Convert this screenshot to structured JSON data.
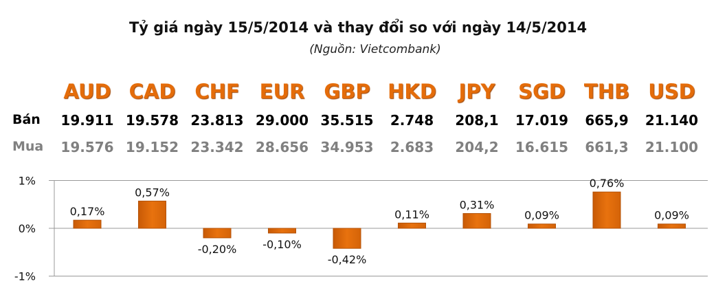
{
  "title": "Tỷ giá ngày 15/5/2014 và thay đổi so với ngày 14/5/2014",
  "source": "(Nguồn: Vietcombank)",
  "ban_label": "Bán",
  "mua_label": "Mua",
  "currencies": [
    "AUD",
    "CAD",
    "CHF",
    "EUR",
    "GBP",
    "HKD",
    "JPY",
    "SGD",
    "THB",
    "USD"
  ],
  "ban": [
    "19.911",
    "19.578",
    "23.813",
    "29.000",
    "35.515",
    "2.748",
    "208,1",
    "17.019",
    "665,9",
    "21.140"
  ],
  "mua": [
    "19.576",
    "19.152",
    "23.342",
    "28.656",
    "34.953",
    "2.683",
    "204,2",
    "16.615",
    "661,3",
    "21.100"
  ],
  "colors": {
    "bar": "#e46c0a",
    "bar_dark": "#b35208",
    "accent": "#e46c0a"
  },
  "chart_data": {
    "type": "bar",
    "title": "Tỷ giá ngày 15/5/2014 và thay đổi so với ngày 14/5/2014",
    "categories": [
      "AUD",
      "CAD",
      "CHF",
      "EUR",
      "GBP",
      "HKD",
      "JPY",
      "SGD",
      "THB",
      "USD"
    ],
    "values": [
      0.17,
      0.57,
      -0.2,
      -0.1,
      -0.42,
      0.11,
      0.31,
      0.09,
      0.76,
      0.09
    ],
    "data_labels": [
      "0,17%",
      "0,57%",
      "-0,20%",
      "-0,10%",
      "-0,42%",
      "0,11%",
      "0,31%",
      "0,09%",
      "0,76%",
      "0,09%"
    ],
    "ylim": [
      -1,
      1
    ],
    "yticks": [
      1,
      0,
      -1
    ],
    "ytick_labels": [
      "1%",
      "0%",
      "-1%"
    ],
    "xlabel": "",
    "ylabel": "",
    "grid": true
  }
}
